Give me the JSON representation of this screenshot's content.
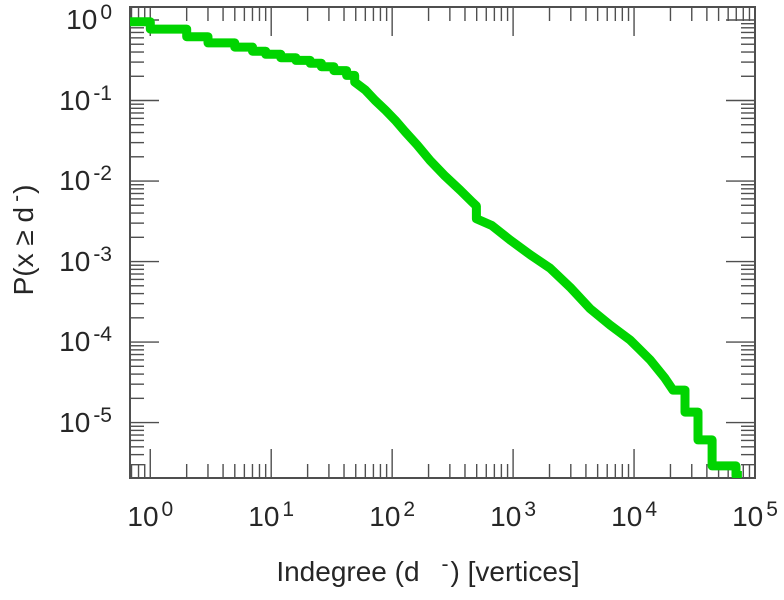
{
  "chart_data": {
    "type": "line",
    "title": "",
    "subtitle": "",
    "grid": false,
    "legend": null,
    "x_axis": {
      "label": "Indegree (d⁻) [vertices]",
      "label_prefix": "Indegree (d",
      "label_sup": "-",
      "label_suffix": ") [vertices]",
      "scale": "log",
      "min": 0.68,
      "max": 100000,
      "tick_base": "10",
      "tick_exponents": [
        "0",
        "1",
        "2",
        "3",
        "4",
        "5"
      ],
      "tick_values": [
        1,
        10,
        100,
        1000,
        10000,
        100000
      ]
    },
    "y_axis": {
      "label": "P(x ≥ d⁻)",
      "label_prefix": "P(x ≥ d",
      "label_sup": "-",
      "label_suffix": ")",
      "scale": "log",
      "min": 2.05e-06,
      "max": 1.45,
      "tick_base": "10",
      "tick_exponents": [
        "0",
        "-1",
        "-2",
        "-3",
        "-4",
        "-5"
      ],
      "tick_values": [
        1,
        0.1,
        0.01,
        0.001,
        0.0001,
        1e-05
      ]
    },
    "series": [
      {
        "name": "indegree-ccdf",
        "color": "#00D400",
        "line_width": 9,
        "points": [
          [
            0.68,
            0.95
          ],
          [
            1,
            0.95
          ],
          [
            1,
            0.77
          ],
          [
            2,
            0.77
          ],
          [
            2,
            0.62
          ],
          [
            3,
            0.62
          ],
          [
            3,
            0.52
          ],
          [
            5,
            0.52
          ],
          [
            5,
            0.46
          ],
          [
            7,
            0.46
          ],
          [
            7,
            0.41
          ],
          [
            9,
            0.41
          ],
          [
            9,
            0.375
          ],
          [
            12,
            0.375
          ],
          [
            12,
            0.34
          ],
          [
            16,
            0.34
          ],
          [
            16,
            0.315
          ],
          [
            21,
            0.315
          ],
          [
            21,
            0.29
          ],
          [
            26,
            0.29
          ],
          [
            26,
            0.263
          ],
          [
            33,
            0.263
          ],
          [
            33,
            0.235
          ],
          [
            42,
            0.235
          ],
          [
            42,
            0.205
          ],
          [
            49,
            0.205
          ],
          [
            49,
            0.17
          ],
          [
            60,
            0.135
          ],
          [
            72,
            0.101
          ],
          [
            88,
            0.076
          ],
          [
            106,
            0.057
          ],
          [
            128,
            0.041
          ],
          [
            161,
            0.028
          ],
          [
            206,
            0.018
          ],
          [
            274,
            0.0115
          ],
          [
            365,
            0.0077
          ],
          [
            458,
            0.0055
          ],
          [
            497,
            0.0049
          ],
          [
            497,
            0.0034
          ],
          [
            667,
            0.0028
          ],
          [
            944,
            0.00185
          ],
          [
            1390,
            0.00121
          ],
          [
            2020,
            0.00083
          ],
          [
            2960,
            0.00048
          ],
          [
            4330,
            0.00026
          ],
          [
            6330,
            0.000163
          ],
          [
            9270,
            0.000106
          ],
          [
            13600,
            6e-05
          ],
          [
            18000,
            3.57e-05
          ],
          [
            21000,
            2.53e-05
          ],
          [
            26400,
            2.53e-05
          ],
          [
            26400,
            1.35e-05
          ],
          [
            33800,
            1.35e-05
          ],
          [
            33800,
            6.1e-06
          ],
          [
            44200,
            6.1e-06
          ],
          [
            44200,
            2.9e-06
          ],
          [
            69700,
            2.9e-06
          ],
          [
            69700,
            2.2e-06
          ],
          [
            78000,
            2.2e-06
          ]
        ]
      }
    ]
  },
  "colors": {
    "background": "#ffffff",
    "axis": "#4f4f4f",
    "text": "#262626",
    "curve": "#00D400"
  }
}
